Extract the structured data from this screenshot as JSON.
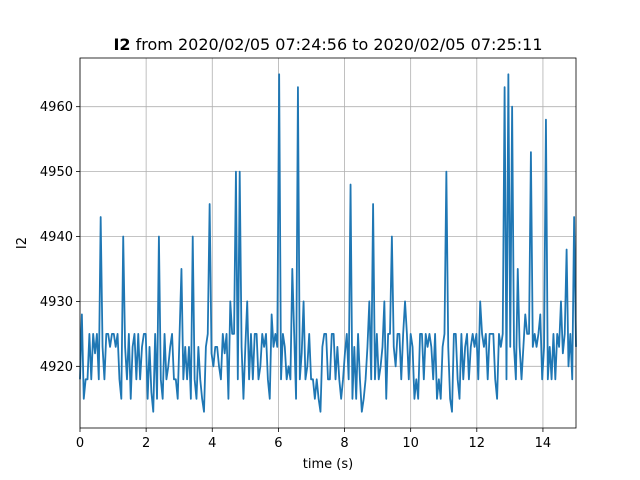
{
  "chart_data": {
    "type": "line",
    "title_bold": "I2",
    "title_rest": " from 2020/02/05 07:24:56 to 2020/02/05 07:25:11",
    "xlabel": "time (s)",
    "ylabel": "I2",
    "xlim": [
      0,
      15
    ],
    "ylim": [
      4910.5,
      4967.5
    ],
    "xticks": [
      0,
      2,
      4,
      6,
      8,
      10,
      12,
      14
    ],
    "yticks": [
      4920,
      4930,
      4940,
      4950,
      4960
    ],
    "grid": true,
    "line_color": "#1f77b4",
    "series": [
      {
        "y": [
          4918,
          4928,
          4915,
          4918,
          4918,
          4925,
          4918,
          4925,
          4922,
          4925,
          4918,
          4943,
          4923,
          4918,
          4925,
          4925,
          4923,
          4925,
          4925,
          4923,
          4925,
          4918,
          4915,
          4940,
          4923,
          4918,
          4925,
          4915,
          4923,
          4925,
          4918,
          4925,
          4918,
          4923,
          4925,
          4925,
          4915,
          4923,
          4916,
          4913,
          4925,
          4915,
          4940,
          4918,
          4915,
          4925,
          4918,
          4920,
          4923,
          4925,
          4918,
          4918,
          4915,
          4925,
          4935,
          4918,
          4923,
          4918,
          4923,
          4915,
          4940,
          4918,
          4915,
          4923,
          4918,
          4915,
          4913,
          4923,
          4925,
          4945,
          4922,
          4920,
          4923,
          4923,
          4920,
          4918,
          4925,
          4922,
          4925,
          4915,
          4930,
          4925,
          4925,
          4950,
          4918,
          4950,
          4923,
          4915,
          4923,
          4930,
          4918,
          4925,
          4918,
          4925,
          4925,
          4918,
          4920,
          4925,
          4923,
          4925,
          4918,
          4915,
          4928,
          4923,
          4925,
          4923,
          4965,
          4918,
          4925,
          4923,
          4918,
          4920,
          4918,
          4935,
          4925,
          4915,
          4963,
          4918,
          4922,
          4930,
          4918,
          4920,
          4925,
          4918,
          4918,
          4915,
          4918,
          4915,
          4913,
          4923,
          4925,
          4925,
          4918,
          4918,
          4925,
          4925,
          4918,
          4923,
          4918,
          4915,
          4918,
          4922,
          4925,
          4918,
          4948,
          4915,
          4923,
          4915,
          4925,
          4918,
          4913,
          4915,
          4918,
          4923,
          4930,
          4918,
          4945,
          4918,
          4925,
          4918,
          4920,
          4923,
          4930,
          4915,
          4925,
          4925,
          4940,
          4923,
          4920,
          4925,
          4925,
          4918,
          4925,
          4930,
          4925,
          4918,
          4925,
          4923,
          4915,
          4918,
          4915,
          4925,
          4925,
          4918,
          4925,
          4923,
          4925,
          4923,
          4918,
          4925,
          4915,
          4918,
          4915,
          4923,
          4925,
          4950,
          4923,
          4915,
          4913,
          4925,
          4925,
          4918,
          4915,
          4925,
          4918,
          4923,
          4925,
          4918,
          4923,
          4925,
          4923,
          4925,
          4918,
          4930,
          4925,
          4923,
          4925,
          4918,
          4925,
          4925,
          4925,
          4918,
          4915,
          4925,
          4923,
          4925,
          4963,
          4918,
          4965,
          4923,
          4960,
          4923,
          4918,
          4935,
          4923,
          4918,
          4923,
          4928,
          4925,
          4925,
          4953,
          4923,
          4925,
          4923,
          4925,
          4928,
          4918,
          4923,
          4958,
          4918,
          4923,
          4918,
          4925,
          4918,
          4925,
          4923,
          4930,
          4922,
          4925,
          4938,
          4920,
          4925,
          4918,
          4943,
          4923
        ]
      }
    ]
  }
}
